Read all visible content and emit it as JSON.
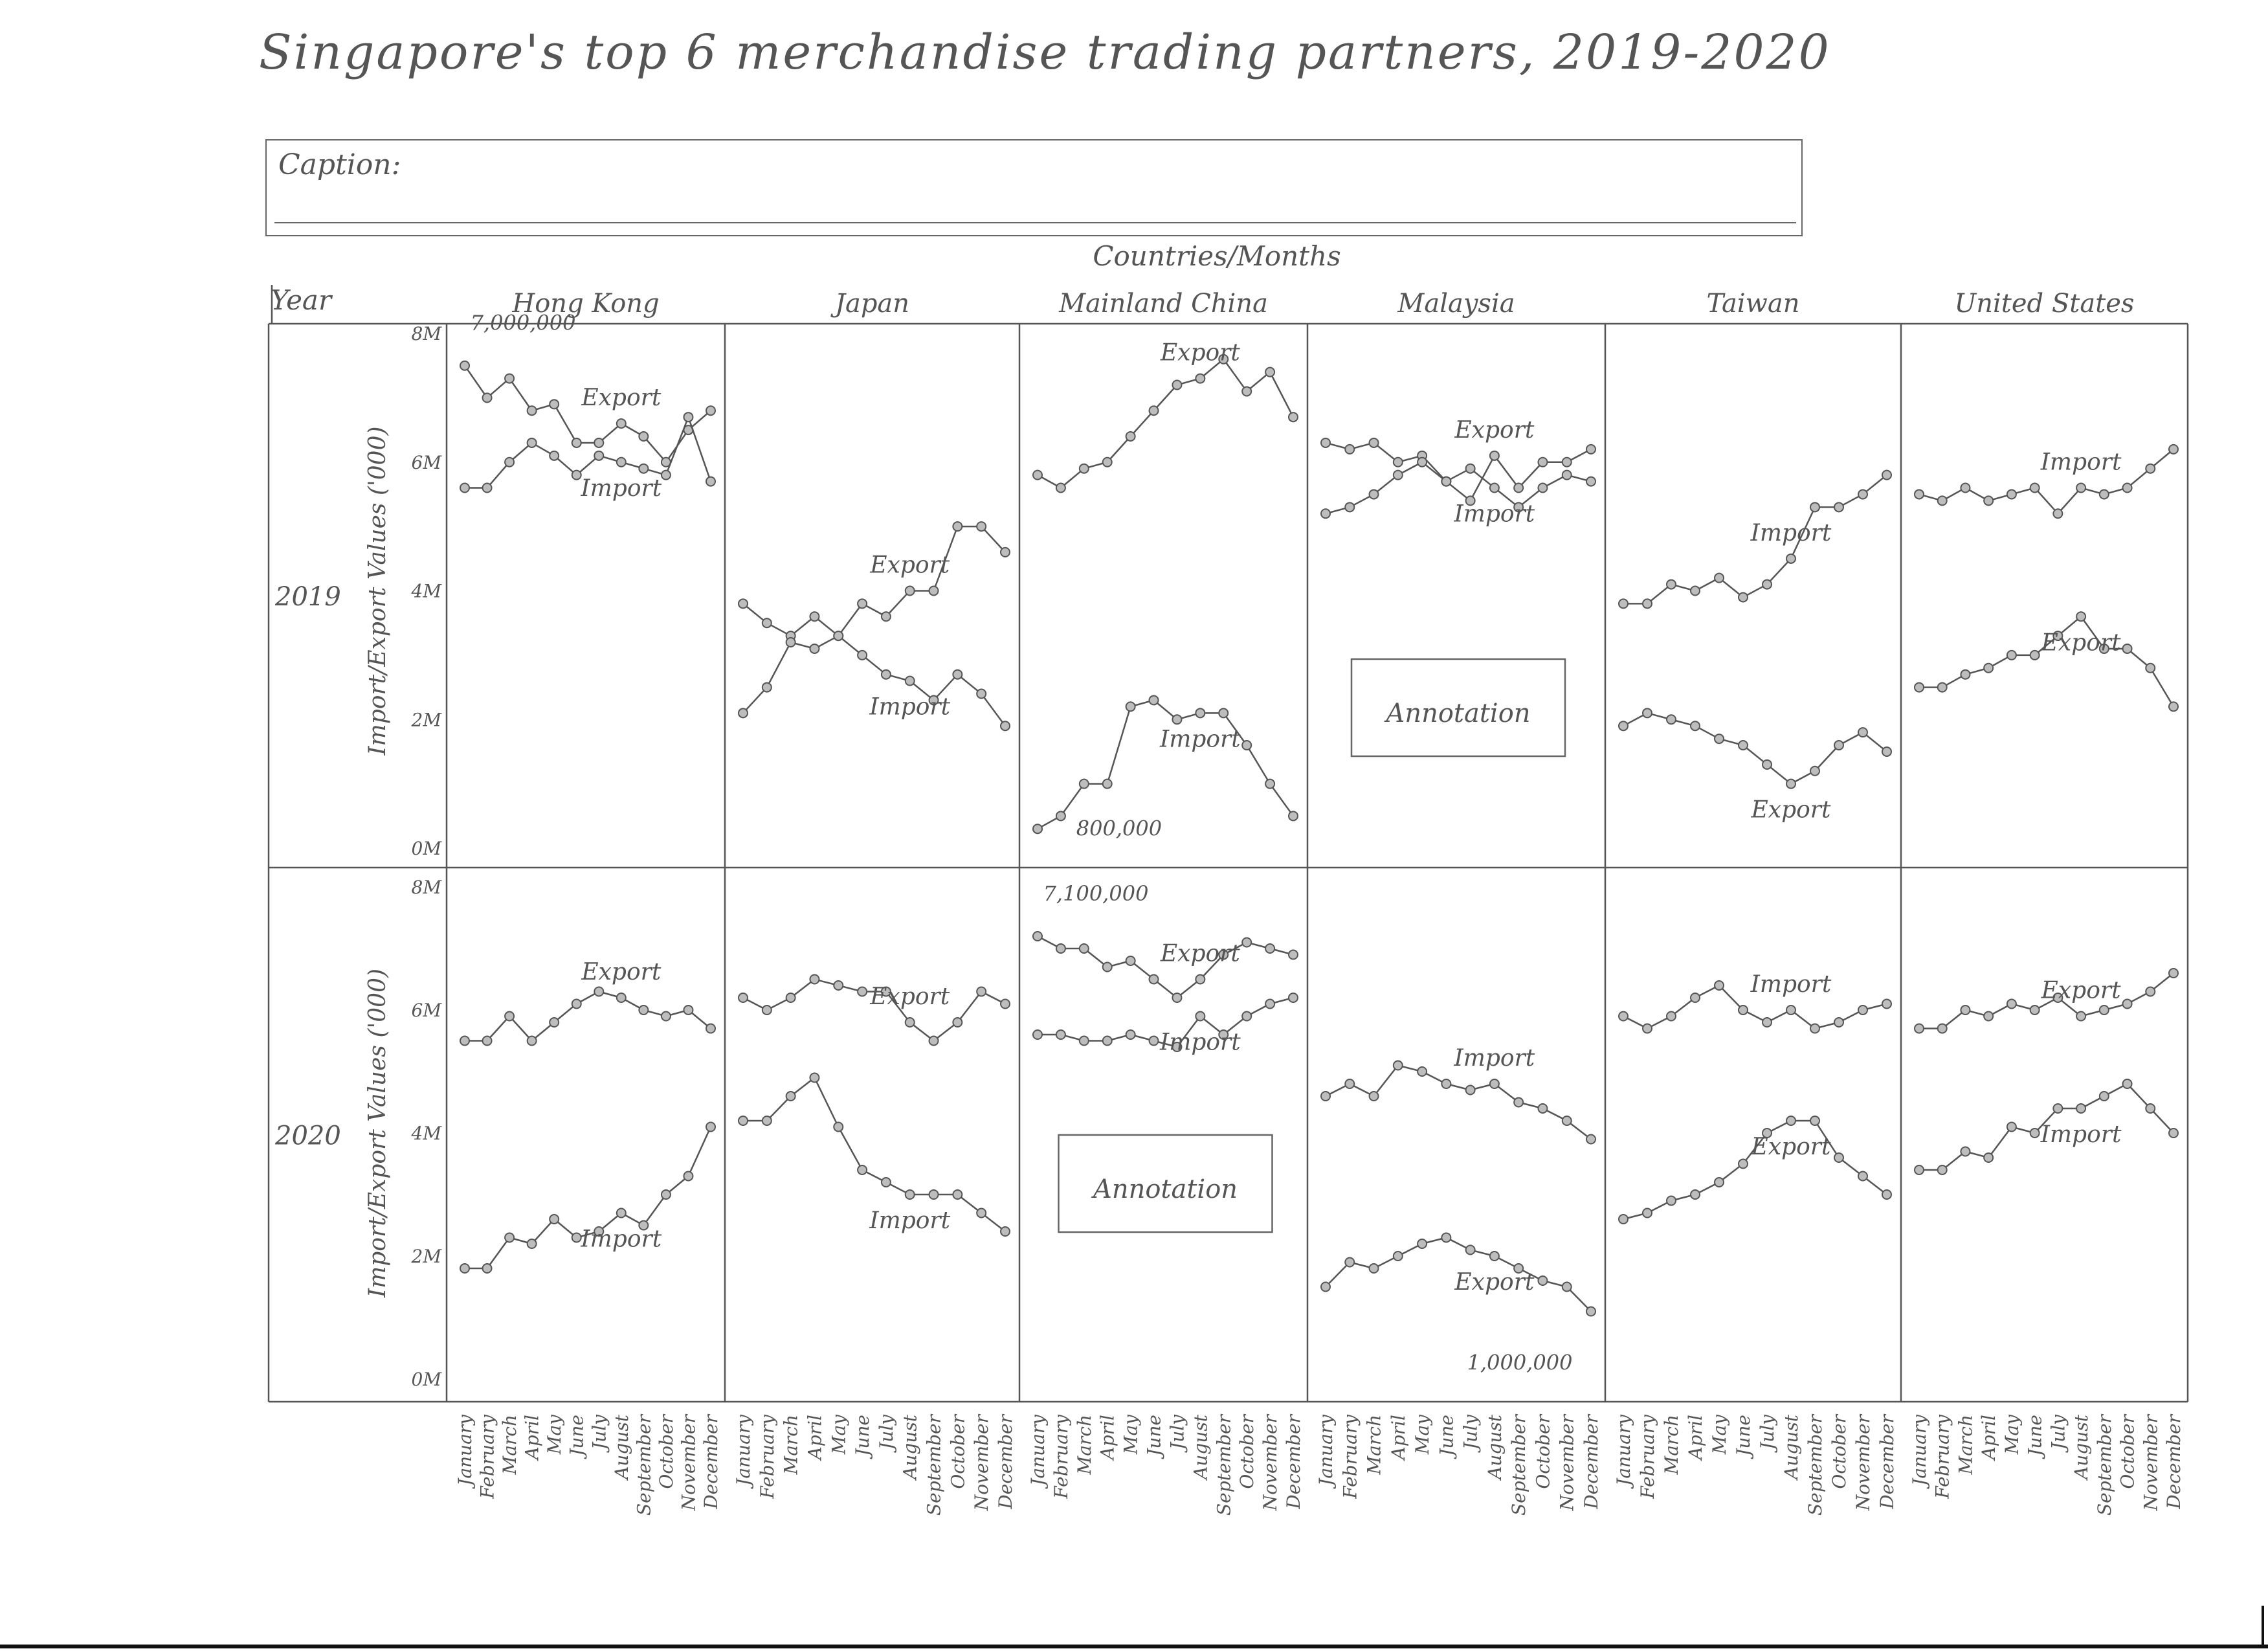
{
  "title": "Singapore's top 6 merchandise trading partners, 2019-2020",
  "caption": {
    "label": "Caption:"
  },
  "header": {
    "column_group_label": "Countries/Months",
    "year_label": "Year",
    "countries": [
      "Hong Kong",
      "Japan",
      "Mainland China",
      "Malaysia",
      "Taiwan",
      "United States"
    ]
  },
  "chart_data": {
    "type": "line",
    "title": "Singapore's top 6 merchandise trading partners, 2019-2020",
    "ylabels": {
      "2019": "Import/Export Values ('000)",
      "2020": "Import/Export Values ('000)"
    },
    "yticks": [
      "0M",
      "2M",
      "4M",
      "6M",
      "8M"
    ],
    "ylim": [
      0,
      8
    ],
    "years": [
      "2019",
      "2020"
    ],
    "months": [
      "January",
      "February",
      "March",
      "April",
      "May",
      "June",
      "July",
      "August",
      "September",
      "October",
      "November",
      "December"
    ],
    "panels": [
      {
        "year": "2019",
        "country": "Hong Kong",
        "series": [
          {
            "name": "Export",
            "values": [
              7.5,
              7.0,
              7.3,
              6.8,
              6.9,
              6.3,
              6.3,
              6.6,
              6.4,
              6.0,
              6.5,
              6.8
            ]
          },
          {
            "name": "Import",
            "values": [
              5.6,
              5.6,
              6.0,
              6.3,
              6.1,
              5.8,
              6.1,
              6.0,
              5.9,
              5.8,
              6.7,
              5.7
            ]
          }
        ],
        "annotations": [
          {
            "text": "7,000,000"
          }
        ]
      },
      {
        "year": "2019",
        "country": "Japan",
        "series": [
          {
            "name": "Export",
            "values": [
              3.8,
              3.5,
              3.3,
              3.6,
              3.3,
              3.8,
              3.6,
              4.0,
              4.0,
              5.0,
              5.0,
              4.6
            ]
          },
          {
            "name": "Import",
            "values": [
              2.1,
              2.5,
              3.2,
              3.1,
              3.3,
              3.0,
              2.7,
              2.6,
              2.3,
              2.7,
              2.4,
              1.9
            ]
          }
        ]
      },
      {
        "year": "2019",
        "country": "Mainland China",
        "series": [
          {
            "name": "Export",
            "values": [
              5.8,
              5.6,
              5.9,
              6.0,
              6.4,
              6.8,
              7.2,
              7.3,
              7.6,
              7.1,
              7.4,
              6.7
            ]
          },
          {
            "name": "Import",
            "values": [
              0.3,
              0.5,
              1.0,
              1.0,
              2.2,
              2.3,
              2.0,
              2.1,
              2.1,
              1.6,
              1.0,
              0.5
            ]
          }
        ],
        "annotations": [
          {
            "text": "800,000"
          }
        ]
      },
      {
        "year": "2019",
        "country": "Malaysia",
        "series": [
          {
            "name": "Export",
            "values": [
              6.3,
              6.2,
              6.3,
              6.0,
              6.1,
              5.7,
              5.4,
              6.1,
              5.6,
              6.0,
              6.0,
              6.2
            ]
          },
          {
            "name": "Import",
            "values": [
              5.2,
              5.3,
              5.5,
              5.8,
              6.0,
              5.7,
              5.9,
              5.6,
              5.3,
              5.6,
              5.8,
              5.7
            ]
          }
        ],
        "annotations": [
          {
            "text": "Annotation"
          }
        ]
      },
      {
        "year": "2019",
        "country": "Taiwan",
        "series": [
          {
            "name": "Import",
            "values": [
              3.8,
              3.8,
              4.1,
              4.0,
              4.2,
              3.9,
              4.1,
              4.5,
              5.3,
              5.3,
              5.5,
              5.8
            ]
          },
          {
            "name": "Export",
            "values": [
              1.9,
              2.1,
              2.0,
              1.9,
              1.7,
              1.6,
              1.3,
              1.0,
              1.2,
              1.6,
              1.8,
              1.5
            ]
          }
        ]
      },
      {
        "year": "2019",
        "country": "United States",
        "series": [
          {
            "name": "Import",
            "values": [
              5.5,
              5.4,
              5.6,
              5.4,
              5.5,
              5.6,
              5.2,
              5.6,
              5.5,
              5.6,
              5.9,
              6.2
            ]
          },
          {
            "name": "Export",
            "values": [
              2.5,
              2.5,
              2.7,
              2.8,
              3.0,
              3.0,
              3.3,
              3.6,
              3.1,
              3.1,
              2.8,
              2.2
            ]
          }
        ]
      },
      {
        "year": "2020",
        "country": "Hong Kong",
        "series": [
          {
            "name": "Export",
            "values": [
              5.5,
              5.5,
              5.9,
              5.5,
              5.8,
              6.1,
              6.3,
              6.2,
              6.0,
              5.9,
              6.0,
              5.7
            ]
          },
          {
            "name": "Import",
            "values": [
              1.8,
              1.8,
              2.3,
              2.2,
              2.6,
              2.3,
              2.4,
              2.7,
              2.5,
              3.0,
              3.3,
              4.1
            ]
          }
        ]
      },
      {
        "year": "2020",
        "country": "Japan",
        "series": [
          {
            "name": "Export",
            "values": [
              6.2,
              6.0,
              6.2,
              6.5,
              6.4,
              6.3,
              6.3,
              5.8,
              5.5,
              5.8,
              6.3,
              6.1
            ]
          },
          {
            "name": "Import",
            "values": [
              4.2,
              4.2,
              4.6,
              4.9,
              4.1,
              3.4,
              3.2,
              3.0,
              3.0,
              3.0,
              2.7,
              2.4
            ]
          }
        ]
      },
      {
        "year": "2020",
        "country": "Mainland China",
        "series": [
          {
            "name": "Export",
            "values": [
              7.2,
              7.0,
              7.0,
              6.7,
              6.8,
              6.5,
              6.2,
              6.5,
              6.9,
              7.1,
              7.0,
              6.9
            ]
          },
          {
            "name": "Import",
            "values": [
              5.6,
              5.6,
              5.5,
              5.5,
              5.6,
              5.5,
              5.4,
              5.9,
              5.6,
              5.9,
              6.1,
              6.2
            ]
          }
        ],
        "annotations": [
          {
            "text": "7,100,000"
          },
          {
            "text": "Annotation"
          }
        ]
      },
      {
        "year": "2020",
        "country": "Malaysia",
        "series": [
          {
            "name": "Import",
            "values": [
              4.6,
              4.8,
              4.6,
              5.1,
              5.0,
              4.8,
              4.7,
              4.8,
              4.5,
              4.4,
              4.2,
              3.9
            ]
          },
          {
            "name": "Export",
            "values": [
              1.5,
              1.9,
              1.8,
              2.0,
              2.2,
              2.3,
              2.1,
              2.0,
              1.8,
              1.6,
              1.5,
              1.1
            ]
          }
        ],
        "annotations": [
          {
            "text": "1,000,000"
          }
        ]
      },
      {
        "year": "2020",
        "country": "Taiwan",
        "series": [
          {
            "name": "Import",
            "values": [
              5.9,
              5.7,
              5.9,
              6.2,
              6.4,
              6.0,
              5.8,
              6.0,
              5.7,
              5.8,
              6.0,
              6.1
            ]
          },
          {
            "name": "Export",
            "values": [
              2.6,
              2.7,
              2.9,
              3.0,
              3.2,
              3.5,
              4.0,
              4.2,
              4.2,
              3.6,
              3.3,
              3.0
            ]
          }
        ]
      },
      {
        "year": "2020",
        "country": "United States",
        "series": [
          {
            "name": "Export",
            "values": [
              5.7,
              5.7,
              6.0,
              5.9,
              6.1,
              6.0,
              6.2,
              5.9,
              6.0,
              6.1,
              6.3,
              6.6
            ]
          },
          {
            "name": "Import",
            "values": [
              3.4,
              3.4,
              3.7,
              3.6,
              4.1,
              4.0,
              4.4,
              4.4,
              4.6,
              4.8,
              4.4,
              4.0
            ]
          }
        ]
      }
    ]
  }
}
